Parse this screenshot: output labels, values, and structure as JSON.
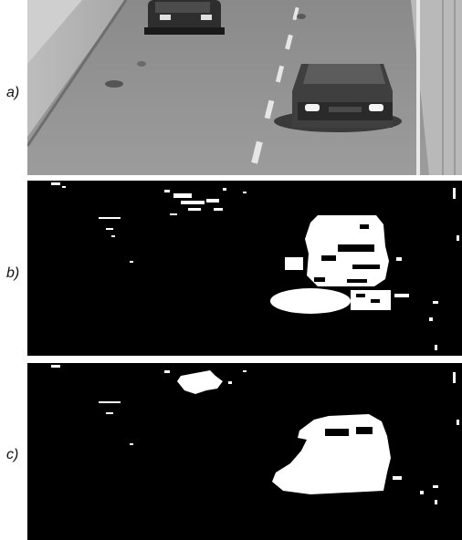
{
  "panels": [
    {
      "label": "a)",
      "kind": "grayscale-photo"
    },
    {
      "label": "b)",
      "kind": "binary-mask"
    },
    {
      "label": "c)",
      "kind": "binary-mask-filled"
    }
  ],
  "colors": {
    "mask_foreground": "#ffffff",
    "mask_background": "#000000"
  }
}
